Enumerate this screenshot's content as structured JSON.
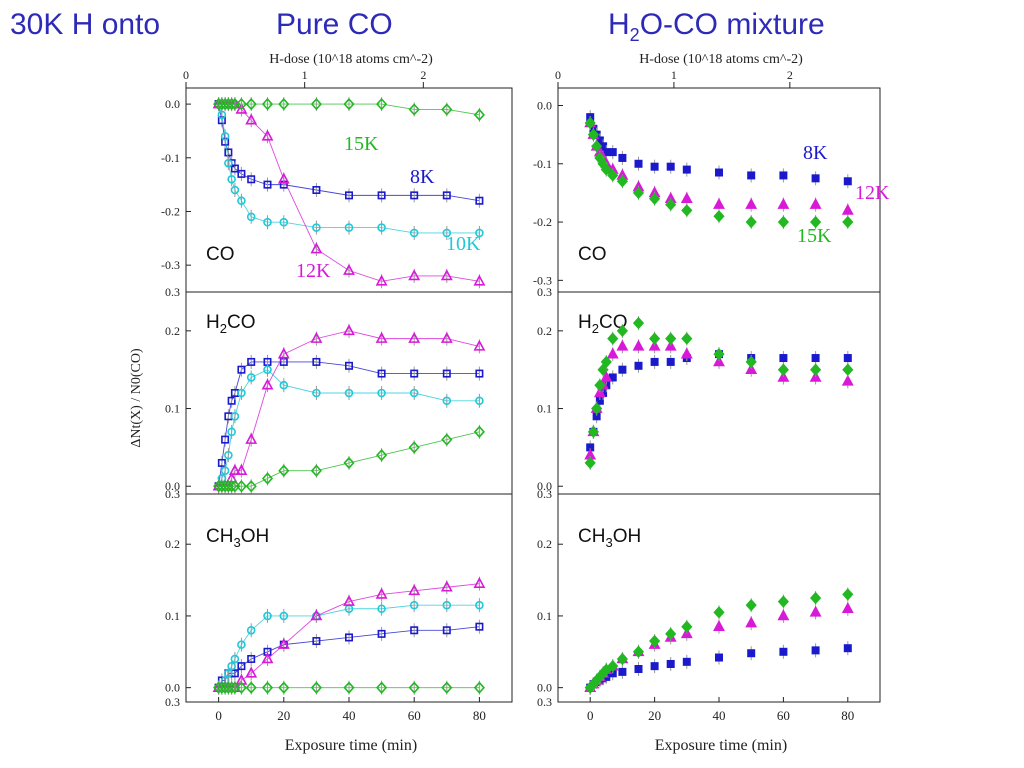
{
  "header": {
    "left": "30K H onto",
    "pure": "Pure CO",
    "mix_prefix": "H",
    "mix_sub": "2",
    "mix_suffix": "O-CO mixture"
  },
  "shared": {
    "top_axis_label": "H-dose (10^18 atoms cm^-2)",
    "top_ticks": [
      "0",
      "1",
      "2"
    ],
    "xlabel": "Exposure time (min)",
    "ylabel": "ΔNt(X) / N0(CO)",
    "x_ticks": [
      0,
      20,
      40,
      60,
      80
    ]
  },
  "colors": {
    "8K": "#1a1acc",
    "10K": "#20c8d8",
    "12K": "#d81ad8",
    "15K": "#22b822"
  },
  "chart_data": [
    {
      "type": "scatter",
      "title": "Pure CO",
      "species": "CO",
      "x": [
        0,
        1,
        2,
        3,
        4,
        5,
        7,
        10,
        15,
        20,
        30,
        40,
        50,
        60,
        70,
        80
      ],
      "ylim": [
        -0.35,
        0.03
      ],
      "yticks": [
        0.0,
        -0.1,
        -0.2,
        -0.3
      ],
      "bottom_tick_label": "0.3",
      "series": [
        {
          "name": "8K",
          "marker": "open-square",
          "values": [
            0.0,
            -0.03,
            -0.07,
            -0.09,
            -0.11,
            -0.12,
            -0.13,
            -0.14,
            -0.15,
            -0.15,
            -0.16,
            -0.17,
            -0.17,
            -0.17,
            -0.17,
            -0.18
          ]
        },
        {
          "name": "10K",
          "marker": "open-circle",
          "values": [
            0.0,
            -0.02,
            -0.06,
            -0.11,
            -0.14,
            -0.16,
            -0.18,
            -0.21,
            -0.22,
            -0.22,
            -0.23,
            -0.23,
            -0.23,
            -0.24,
            -0.24,
            -0.24
          ]
        },
        {
          "name": "12K",
          "marker": "open-triangle",
          "values": [
            0.0,
            0.0,
            0.0,
            0.0,
            0.0,
            0.0,
            -0.01,
            -0.03,
            -0.06,
            -0.14,
            -0.27,
            -0.31,
            -0.33,
            -0.32,
            -0.32,
            -0.33
          ]
        },
        {
          "name": "15K",
          "marker": "open-diamond",
          "values": [
            0.0,
            0.0,
            0.0,
            0.0,
            0.0,
            0.0,
            0.0,
            0.0,
            0.0,
            0.0,
            0.0,
            0.0,
            0.0,
            -0.01,
            -0.01,
            -0.02
          ]
        }
      ]
    },
    {
      "type": "scatter",
      "title": "Pure CO",
      "species": "H2CO",
      "x": [
        0,
        1,
        2,
        3,
        4,
        5,
        7,
        10,
        15,
        20,
        30,
        40,
        50,
        60,
        70,
        80
      ],
      "ylim": [
        -0.01,
        0.25
      ],
      "yticks": [
        0.0,
        0.1,
        0.2
      ],
      "bottom_tick_label": "0.3",
      "series": [
        {
          "name": "8K",
          "marker": "open-square",
          "values": [
            0.0,
            0.03,
            0.06,
            0.09,
            0.11,
            0.12,
            0.15,
            0.16,
            0.16,
            0.16,
            0.16,
            0.155,
            0.145,
            0.145,
            0.145,
            0.145
          ]
        },
        {
          "name": "10K",
          "marker": "open-circle",
          "values": [
            0.0,
            0.01,
            0.02,
            0.04,
            0.07,
            0.09,
            0.12,
            0.14,
            0.15,
            0.13,
            0.12,
            0.12,
            0.12,
            0.12,
            0.11,
            0.11
          ]
        },
        {
          "name": "12K",
          "marker": "open-triangle",
          "values": [
            0.0,
            0.0,
            0.0,
            0.0,
            0.01,
            0.02,
            0.02,
            0.06,
            0.13,
            0.17,
            0.19,
            0.2,
            0.19,
            0.19,
            0.19,
            0.18
          ]
        },
        {
          "name": "15K",
          "marker": "open-diamond",
          "values": [
            0.0,
            0.0,
            0.0,
            0.0,
            0.0,
            0.0,
            0.0,
            0.0,
            0.01,
            0.02,
            0.02,
            0.03,
            0.04,
            0.05,
            0.06,
            0.07
          ]
        }
      ]
    },
    {
      "type": "scatter",
      "title": "Pure CO",
      "species": "CH3OH",
      "x": [
        0,
        1,
        2,
        3,
        4,
        5,
        7,
        10,
        15,
        20,
        30,
        40,
        50,
        60,
        70,
        80
      ],
      "ylim": [
        -0.02,
        0.27
      ],
      "yticks": [
        0.0,
        0.1,
        0.2
      ],
      "bottom_tick_label": "0.3",
      "series": [
        {
          "name": "8K",
          "marker": "open-square",
          "values": [
            0.0,
            0.01,
            0.01,
            0.02,
            0.02,
            0.02,
            0.03,
            0.04,
            0.05,
            0.06,
            0.065,
            0.07,
            0.075,
            0.08,
            0.08,
            0.085
          ]
        },
        {
          "name": "10K",
          "marker": "open-circle",
          "values": [
            0.0,
            0.0,
            0.01,
            0.02,
            0.03,
            0.04,
            0.06,
            0.08,
            0.1,
            0.1,
            0.1,
            0.11,
            0.11,
            0.115,
            0.115,
            0.115
          ]
        },
        {
          "name": "12K",
          "marker": "open-triangle",
          "values": [
            0.0,
            0.0,
            0.0,
            0.0,
            0.0,
            0.0,
            0.01,
            0.02,
            0.04,
            0.06,
            0.1,
            0.12,
            0.13,
            0.135,
            0.14,
            0.145
          ]
        },
        {
          "name": "15K",
          "marker": "open-diamond",
          "values": [
            0.0,
            0.0,
            0.0,
            0.0,
            0.0,
            0.0,
            0.0,
            0.0,
            0.0,
            0.0,
            0.0,
            0.0,
            0.0,
            0.0,
            0.0,
            0.0
          ]
        }
      ]
    },
    {
      "type": "scatter",
      "title": "H2O-CO mixture",
      "species": "CO",
      "x": [
        0,
        1,
        2,
        3,
        4,
        5,
        7,
        10,
        15,
        20,
        25,
        30,
        40,
        50,
        60,
        70,
        80
      ],
      "ylim": [
        -0.32,
        0.03
      ],
      "yticks": [
        0.0,
        -0.1,
        -0.2,
        -0.3
      ],
      "bottom_tick_label": "0.3",
      "series": [
        {
          "name": "8K",
          "marker": "filled-square",
          "values": [
            -0.02,
            -0.04,
            -0.05,
            -0.06,
            -0.07,
            -0.08,
            -0.08,
            -0.09,
            -0.1,
            -0.105,
            -0.105,
            -0.11,
            -0.115,
            -0.12,
            -0.12,
            -0.125,
            -0.13
          ]
        },
        {
          "name": "12K",
          "marker": "filled-triangle",
          "values": [
            -0.03,
            -0.05,
            -0.07,
            -0.08,
            -0.09,
            -0.1,
            -0.11,
            -0.12,
            -0.14,
            -0.15,
            -0.16,
            -0.16,
            -0.17,
            -0.17,
            -0.17,
            -0.17,
            -0.18
          ]
        },
        {
          "name": "15K",
          "marker": "filled-diamond",
          "values": [
            -0.03,
            -0.05,
            -0.07,
            -0.09,
            -0.1,
            -0.11,
            -0.12,
            -0.13,
            -0.15,
            -0.16,
            -0.17,
            -0.18,
            -0.19,
            -0.2,
            -0.2,
            -0.2,
            -0.2
          ]
        }
      ]
    },
    {
      "type": "scatter",
      "title": "H2O-CO mixture",
      "species": "H2CO",
      "x": [
        0,
        1,
        2,
        3,
        4,
        5,
        7,
        10,
        15,
        20,
        25,
        30,
        40,
        50,
        60,
        70,
        80
      ],
      "ylim": [
        -0.01,
        0.25
      ],
      "yticks": [
        0.0,
        0.1,
        0.2
      ],
      "bottom_tick_label": "0.3",
      "series": [
        {
          "name": "8K",
          "marker": "filled-square",
          "values": [
            0.05,
            0.07,
            0.09,
            0.11,
            0.12,
            0.13,
            0.14,
            0.15,
            0.155,
            0.16,
            0.16,
            0.165,
            0.17,
            0.165,
            0.165,
            0.165,
            0.165
          ]
        },
        {
          "name": "12K",
          "marker": "filled-triangle",
          "values": [
            0.04,
            0.07,
            0.1,
            0.12,
            0.13,
            0.14,
            0.17,
            0.18,
            0.18,
            0.18,
            0.18,
            0.17,
            0.16,
            0.15,
            0.14,
            0.14,
            0.135
          ]
        },
        {
          "name": "15K",
          "marker": "filled-diamond",
          "values": [
            0.03,
            0.07,
            0.1,
            0.13,
            0.15,
            0.16,
            0.19,
            0.2,
            0.21,
            0.19,
            0.19,
            0.19,
            0.17,
            0.16,
            0.15,
            0.15,
            0.15
          ]
        }
      ]
    },
    {
      "type": "scatter",
      "title": "H2O-CO mixture",
      "species": "CH3OH",
      "x": [
        0,
        1,
        2,
        3,
        4,
        5,
        7,
        10,
        15,
        20,
        25,
        30,
        40,
        50,
        60,
        70,
        80
      ],
      "ylim": [
        -0.02,
        0.27
      ],
      "yticks": [
        0.0,
        0.1,
        0.2
      ],
      "bottom_tick_label": "0.3",
      "series": [
        {
          "name": "8K",
          "marker": "filled-square",
          "values": [
            0.0,
            0.005,
            0.008,
            0.01,
            0.013,
            0.015,
            0.02,
            0.022,
            0.026,
            0.03,
            0.033,
            0.036,
            0.042,
            0.048,
            0.05,
            0.052,
            0.055
          ]
        },
        {
          "name": "12K",
          "marker": "filled-triangle",
          "values": [
            0.0,
            0.005,
            0.01,
            0.015,
            0.02,
            0.025,
            0.03,
            0.04,
            0.05,
            0.06,
            0.07,
            0.075,
            0.085,
            0.09,
            0.1,
            0.105,
            0.11
          ]
        },
        {
          "name": "15K",
          "marker": "filled-diamond",
          "values": [
            0.0,
            0.005,
            0.01,
            0.015,
            0.02,
            0.025,
            0.03,
            0.04,
            0.05,
            0.065,
            0.075,
            0.085,
            0.105,
            0.115,
            0.12,
            0.125,
            0.13
          ]
        }
      ]
    }
  ],
  "series_labels": [
    {
      "text": "15K",
      "color_key": "15K"
    },
    {
      "text": "8K",
      "color_key": "8K"
    },
    {
      "text": "10K",
      "color_key": "10K"
    },
    {
      "text": "12K",
      "color_key": "12K"
    },
    {
      "text": "8K",
      "color_key": "8K"
    },
    {
      "text": "12K",
      "color_key": "12K"
    },
    {
      "text": "15K",
      "color_key": "15K"
    }
  ]
}
